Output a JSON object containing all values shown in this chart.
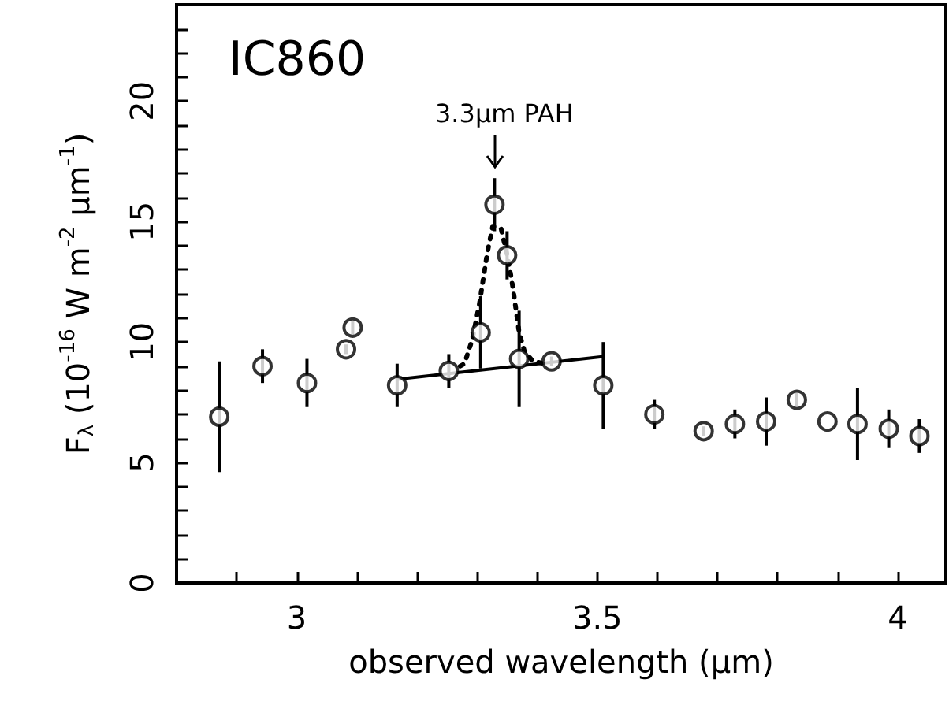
{
  "chart_data": {
    "type": "scatter",
    "title": "IC860",
    "xlabel": "observed wavelength (μm)",
    "ylabel": "F$_{λ}$ (10$^{-16}$ W m$^{-2}$ μm$^{-1}$)",
    "xlim": [
      2.8,
      4.08
    ],
    "ylim": [
      0,
      24
    ],
    "xticks": [
      {
        "value": 2.9,
        "label": null
      },
      3,
      {
        "value": 3.1,
        "label": null
      },
      {
        "value": 3.2,
        "label": null
      },
      {
        "value": 3.3,
        "label": null
      },
      {
        "value": 3.4,
        "label": null
      },
      3.5,
      {
        "value": 3.6,
        "label": null
      },
      {
        "value": 3.7,
        "label": null
      },
      {
        "value": 3.8,
        "label": null
      },
      {
        "value": 3.9,
        "label": null
      },
      4
    ],
    "yticks": [
      0,
      {
        "value": 1,
        "label": null
      },
      {
        "value": 2,
        "label": null
      },
      {
        "value": 3,
        "label": null
      },
      {
        "value": 4,
        "label": null
      },
      5,
      {
        "value": 6,
        "label": null
      },
      {
        "value": 7,
        "label": null
      },
      {
        "value": 8,
        "label": null
      },
      {
        "value": 9,
        "label": null
      },
      10,
      {
        "value": 11,
        "label": null
      },
      {
        "value": 12,
        "label": null
      },
      {
        "value": 13,
        "label": null
      },
      {
        "value": 14,
        "label": null
      },
      15,
      {
        "value": 16,
        "label": null
      },
      {
        "value": 17,
        "label": null
      },
      {
        "value": 18,
        "label": null
      },
      {
        "value": 19,
        "label": null
      },
      20,
      {
        "value": 21,
        "label": null
      },
      {
        "value": 22,
        "label": null
      },
      {
        "value": 23,
        "label": null
      }
    ],
    "series": [
      {
        "color": "#000000",
        "marker": "circle",
        "x": [
          2.871,
          2.943,
          3.017,
          3.082,
          3.093,
          3.167,
          3.253,
          3.306,
          3.329,
          3.35,
          3.37,
          3.424,
          3.51,
          3.595,
          3.677,
          3.729,
          3.781,
          3.832,
          3.883,
          3.933,
          3.985,
          4.036
        ],
        "values": [
          6.9,
          9.0,
          8.3,
          9.7,
          10.6,
          8.2,
          8.8,
          10.4,
          15.7,
          13.6,
          9.3,
          9.2,
          8.2,
          7.0,
          6.3,
          6.6,
          6.7,
          7.6,
          6.7,
          6.6,
          6.4,
          6.1
        ],
        "errors": [
          2.3,
          0.7,
          1.0,
          0.2,
          0.3,
          0.9,
          0.7,
          1.5,
          1.1,
          1.0,
          2.0,
          0.2,
          1.8,
          0.6,
          0.2,
          0.6,
          1.0,
          0.3,
          0,
          1.5,
          0.8,
          0.7
        ]
      },
      {
        "type": "line",
        "color": "#000000",
        "line_style": "solid",
        "marker": "none",
        "x": [
          3.167,
          3.51
        ],
        "values": [
          8.45,
          9.4
        ]
      },
      {
        "type": "line",
        "color": "#000000",
        "line_style": "dotted",
        "marker": "none",
        "x": [
          3.272,
          3.279,
          3.292,
          3.304,
          3.317,
          3.326,
          3.34,
          3.352,
          3.36,
          3.37,
          3.379,
          3.393,
          3.413
        ],
        "values": [
          9.0,
          9.1,
          10.1,
          11.6,
          13.7,
          14.8,
          14.7,
          13.4,
          12.2,
          10.4,
          9.6,
          9.2,
          9.1
        ]
      }
    ],
    "annotations": [
      "3.3μm PAH"
    ],
    "grid": false
  }
}
